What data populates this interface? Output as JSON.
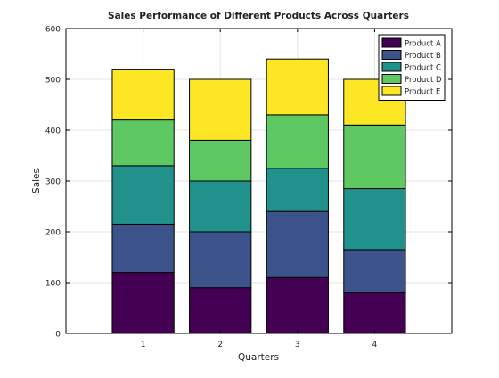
{
  "chart_data": {
    "type": "bar",
    "stacked": true,
    "title": "Sales Performance of Different Products Across Quarters",
    "xlabel": "Quarters",
    "ylabel": "Sales",
    "categories": [
      "1",
      "2",
      "3",
      "4"
    ],
    "ylim": [
      0,
      600
    ],
    "xlim": [
      0,
      5
    ],
    "yticks": [
      0,
      100,
      200,
      300,
      400,
      500,
      600
    ],
    "grid": true,
    "legend_position": "top-right",
    "series": [
      {
        "name": "Product A",
        "values": [
          120,
          90,
          110,
          80
        ],
        "color": "#440154"
      },
      {
        "name": "Product B",
        "values": [
          95,
          110,
          130,
          85
        ],
        "color": "#3b528b"
      },
      {
        "name": "Product C",
        "values": [
          115,
          100,
          85,
          120
        ],
        "color": "#21918c"
      },
      {
        "name": "Product D",
        "values": [
          90,
          80,
          105,
          125
        ],
        "color": "#5ec962"
      },
      {
        "name": "Product E",
        "values": [
          100,
          120,
          110,
          90
        ],
        "color": "#fde725"
      }
    ]
  }
}
